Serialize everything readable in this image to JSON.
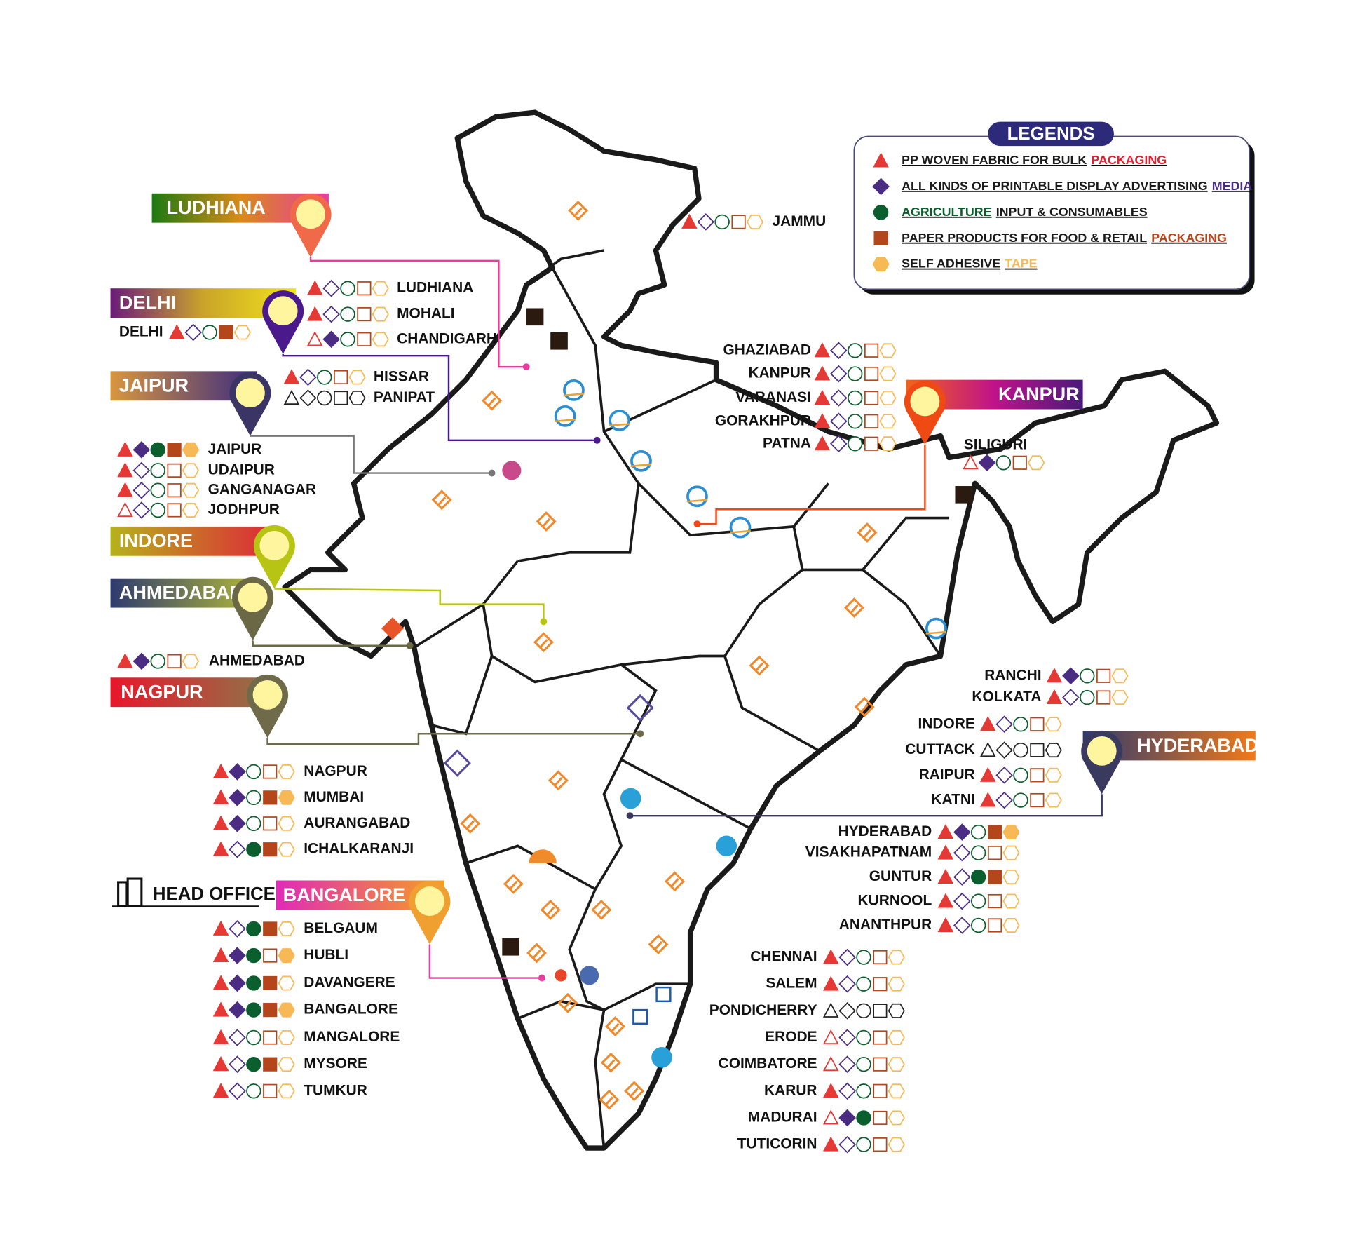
{
  "legend": {
    "title": "LEGENDS",
    "items": [
      {
        "icon": "triangle",
        "color": "#e53935",
        "parts": [
          {
            "text": "PP WOVEN FABRIC FOR BULK",
            "color": "#1a1a1a"
          },
          {
            "text": "PACKAGING",
            "color": "#e5202e"
          }
        ]
      },
      {
        "icon": "diamond",
        "color": "#4b2c83",
        "parts": [
          {
            "text": "ALL KINDS OF PRINTABLE DISPLAY ADVERTISING",
            "color": "#1a1a1a"
          },
          {
            "text": "MEDIA",
            "color": "#4b2c83"
          }
        ]
      },
      {
        "icon": "circle",
        "color": "#0b5e2e",
        "parts": [
          {
            "text": "AGRICULTURE",
            "color": "#0b5e2e"
          },
          {
            "text": "INPUT & CONSUMABLES",
            "color": "#1a1a1a"
          }
        ]
      },
      {
        "icon": "square",
        "color": "#b5451b",
        "parts": [
          {
            "text": "PAPER PRODUCTS FOR FOOD & RETAIL",
            "color": "#1a1a1a"
          },
          {
            "text": "PACKAGING",
            "color": "#b5451b"
          }
        ]
      },
      {
        "icon": "hexagon",
        "color": "#f7b955",
        "parts": [
          {
            "text": "SELF ADHESIVE",
            "color": "#1a1a1a"
          },
          {
            "text": "TAPE",
            "color": "#f7b955"
          }
        ]
      }
    ]
  },
  "head_office": "HEAD OFFICE",
  "hubs": [
    {
      "name": "LUDHIANA",
      "colors": [
        "#1b7a12",
        "#d98a1a",
        "#e83ca0"
      ],
      "pin_color": "#f06a4a"
    },
    {
      "name": "DELHI",
      "colors": [
        "#6a1b7a",
        "#c9a42a",
        "#f2e21c"
      ],
      "pin_color": "#4a1a8c"
    },
    {
      "name": "JAIPUR",
      "colors": [
        "#d9963e",
        "#3a2a80"
      ],
      "pin_color": "#3b3566"
    },
    {
      "name": "INDORE",
      "colors": [
        "#b6b21a",
        "#e0203a"
      ],
      "pin_color": "#b8c414"
    },
    {
      "name": "AHMEDABAD",
      "colors": [
        "#2e3a6e",
        "#b2b83a"
      ],
      "pin_color": "#6b6846"
    },
    {
      "name": "NAGPUR",
      "colors": [
        "#e8162a",
        "#8a7a4a"
      ],
      "pin_color": "#6e6a4a"
    },
    {
      "name": "BANGALORE",
      "colors": [
        "#e02ab8",
        "#f5a020"
      ],
      "pin_color": "#f0a030"
    },
    {
      "name": "KANPUR",
      "colors": [
        "#f0641a",
        "#c0128a",
        "#4a1a7a"
      ],
      "pin_color": "#f04a14"
    },
    {
      "name": "HYDERABAD",
      "colors": [
        "#2e3a6e",
        "#f07a1a"
      ],
      "pin_color": "#3a3a5e"
    }
  ],
  "city_groups": [
    {
      "cities": [
        {
          "name": "JAMMU",
          "filled": [
            true,
            false,
            false,
            false,
            false
          ]
        }
      ]
    },
    {
      "cities": [
        {
          "name": "LUDHIANA",
          "filled": [
            true,
            false,
            false,
            false,
            false
          ]
        },
        {
          "name": "MOHALI",
          "filled": [
            true,
            false,
            false,
            false,
            false
          ]
        },
        {
          "name": "CHANDIGARH",
          "filled": [
            false,
            true,
            false,
            false,
            false
          ]
        }
      ]
    },
    {
      "cities": [
        {
          "name": "DELHI",
          "filled": [
            true,
            false,
            false,
            true,
            false
          ]
        }
      ]
    },
    {
      "cities": [
        {
          "name": "HISSAR",
          "filled": [
            true,
            false,
            false,
            false,
            false
          ]
        },
        {
          "name": "PANIPAT",
          "filled": [
            false,
            false,
            false,
            false,
            false
          ],
          "mono": true
        }
      ]
    },
    {
      "cities": [
        {
          "name": "JAIPUR",
          "filled": [
            true,
            true,
            true,
            true,
            true
          ]
        },
        {
          "name": "UDAIPUR",
          "filled": [
            true,
            false,
            false,
            false,
            false
          ]
        },
        {
          "name": "GANGANAGAR",
          "filled": [
            true,
            false,
            false,
            false,
            false
          ]
        },
        {
          "name": "JODHPUR",
          "filled": [
            false,
            false,
            false,
            false,
            false
          ]
        }
      ]
    },
    {
      "cities": [
        {
          "name": "AHMEDABAD",
          "filled": [
            true,
            true,
            false,
            false,
            false
          ]
        }
      ]
    },
    {
      "cities": [
        {
          "name": "NAGPUR",
          "filled": [
            true,
            true,
            false,
            false,
            false
          ]
        },
        {
          "name": "MUMBAI",
          "filled": [
            true,
            true,
            false,
            true,
            true
          ]
        },
        {
          "name": "AURANGABAD",
          "filled": [
            true,
            true,
            false,
            false,
            false
          ]
        },
        {
          "name": "ICHALKARANJI",
          "filled": [
            true,
            false,
            true,
            true,
            false
          ]
        }
      ]
    },
    {
      "cities": [
        {
          "name": "BELGAUM",
          "filled": [
            true,
            false,
            true,
            true,
            false
          ]
        },
        {
          "name": "HUBLI",
          "filled": [
            true,
            true,
            true,
            false,
            true
          ]
        },
        {
          "name": "DAVANGERE",
          "filled": [
            true,
            true,
            true,
            true,
            false
          ]
        },
        {
          "name": "BANGALORE",
          "filled": [
            true,
            true,
            true,
            true,
            true
          ]
        },
        {
          "name": "MANGALORE",
          "filled": [
            true,
            false,
            false,
            false,
            false
          ]
        },
        {
          "name": "MYSORE",
          "filled": [
            true,
            false,
            true,
            true,
            false
          ]
        },
        {
          "name": "TUMKUR",
          "filled": [
            true,
            false,
            false,
            false,
            false
          ]
        }
      ]
    },
    {
      "cities": [
        {
          "name": "GHAZIABAD",
          "filled": [
            true,
            false,
            false,
            false,
            false
          ]
        },
        {
          "name": "KANPUR",
          "filled": [
            true,
            false,
            false,
            false,
            false
          ]
        },
        {
          "name": "VARANASI",
          "filled": [
            true,
            false,
            false,
            false,
            false
          ]
        },
        {
          "name": "GORAKHPUR",
          "filled": [
            true,
            false,
            false,
            false,
            false
          ]
        },
        {
          "name": "PATNA",
          "filled": [
            true,
            false,
            false,
            false,
            false
          ]
        }
      ]
    },
    {
      "cities": [
        {
          "name": "SILIGURI",
          "filled": [
            false,
            true,
            false,
            false,
            false
          ]
        }
      ]
    },
    {
      "cities": [
        {
          "name": "RANCHI",
          "filled": [
            true,
            true,
            false,
            false,
            false
          ]
        },
        {
          "name": "KOLKATA",
          "filled": [
            true,
            false,
            false,
            false,
            false
          ]
        }
      ]
    },
    {
      "cities": [
        {
          "name": "INDORE",
          "filled": [
            true,
            false,
            false,
            false,
            false
          ]
        },
        {
          "name": "CUTTACK",
          "filled": [
            false,
            false,
            false,
            false,
            false
          ],
          "mono": true
        },
        {
          "name": "RAIPUR",
          "filled": [
            true,
            false,
            false,
            false,
            false
          ]
        },
        {
          "name": "KATNI",
          "filled": [
            true,
            false,
            false,
            false,
            false
          ]
        }
      ]
    },
    {
      "cities": [
        {
          "name": "HYDERABAD",
          "filled": [
            true,
            true,
            false,
            true,
            true
          ]
        },
        {
          "name": "VISAKHAPATNAM",
          "filled": [
            true,
            false,
            false,
            false,
            false
          ]
        },
        {
          "name": "GUNTUR",
          "filled": [
            true,
            false,
            true,
            true,
            false
          ]
        },
        {
          "name": "KURNOOL",
          "filled": [
            true,
            false,
            false,
            false,
            false
          ]
        },
        {
          "name": "ANANTHPUR",
          "filled": [
            true,
            false,
            false,
            false,
            false
          ]
        }
      ]
    },
    {
      "cities": [
        {
          "name": "CHENNAI",
          "filled": [
            true,
            false,
            false,
            false,
            false
          ]
        },
        {
          "name": "SALEM",
          "filled": [
            true,
            false,
            false,
            false,
            false
          ]
        },
        {
          "name": "PONDICHERRY",
          "filled": [
            false,
            false,
            false,
            false,
            false
          ],
          "mono": true
        },
        {
          "name": "ERODE",
          "filled": [
            false,
            false,
            false,
            false,
            false
          ]
        },
        {
          "name": "COIMBATORE",
          "filled": [
            false,
            false,
            false,
            false,
            false
          ]
        },
        {
          "name": "KARUR",
          "filled": [
            true,
            false,
            false,
            false,
            false
          ]
        },
        {
          "name": "MADURAI",
          "filled": [
            false,
            true,
            true,
            false,
            false
          ]
        },
        {
          "name": "TUTICORIN",
          "filled": [
            true,
            false,
            false,
            false,
            false
          ]
        }
      ]
    }
  ]
}
